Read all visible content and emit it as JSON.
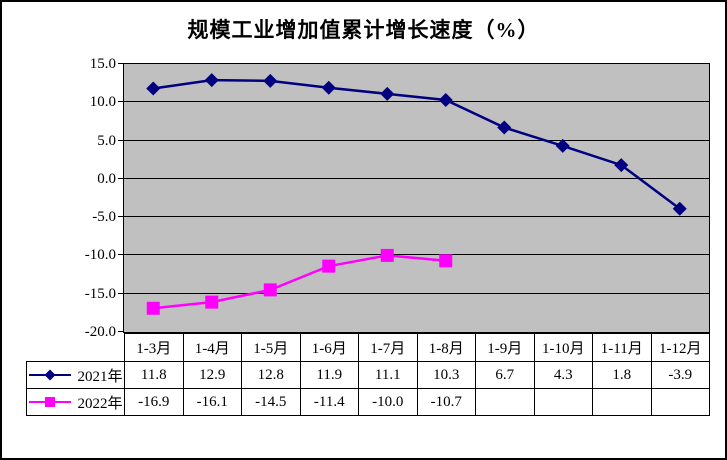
{
  "title": "规模工业增加值累计增长速度（%）",
  "y_axis_labels": [
    "15.0",
    "10.0",
    "5.0",
    "0.0",
    "-5.0",
    "-10.0",
    "-15.0",
    "-20.0"
  ],
  "chart_data": {
    "type": "line",
    "title": "规模工业增加值累计增长速度（%）",
    "categories": [
      "1-3月",
      "1-4月",
      "1-5月",
      "1-6月",
      "1-7月",
      "1-8月",
      "1-9月",
      "1-10月",
      "1-11月",
      "1-12月"
    ],
    "series": [
      {
        "name": "2021年",
        "color": "#000080",
        "marker": "diamond",
        "values": [
          11.8,
          12.9,
          12.8,
          11.9,
          11.1,
          10.3,
          6.7,
          4.3,
          1.8,
          -3.9
        ]
      },
      {
        "name": "2022年",
        "color": "#FF00FF",
        "marker": "square",
        "values": [
          -16.9,
          -16.1,
          -14.5,
          -11.4,
          -10.0,
          -10.7,
          null,
          null,
          null,
          null
        ]
      }
    ],
    "ylim": [
      -20,
      15
    ],
    "ytick_step": 5,
    "grid": true,
    "plot_bg": "#C0C0C0",
    "grid_color": "#000000",
    "legend_position": "table-left"
  },
  "table": {
    "months": [
      "1-3月",
      "1-4月",
      "1-5月",
      "1-6月",
      "1-7月",
      "1-8月",
      "1-9月",
      "1-10月",
      "1-11月",
      "1-12月"
    ],
    "rows": [
      {
        "legend": "2021年",
        "marker": "diamond",
        "color": "#000080",
        "values": [
          "11.8",
          "12.9",
          "12.8",
          "11.9",
          "11.1",
          "10.3",
          "6.7",
          "4.3",
          "1.8",
          "-3.9"
        ]
      },
      {
        "legend": "2022年",
        "marker": "square",
        "color": "#FF00FF",
        "values": [
          "-16.9",
          "-16.1",
          "-14.5",
          "-11.4",
          "-10.0",
          "-10.7",
          "",
          "",
          "",
          ""
        ]
      }
    ]
  }
}
